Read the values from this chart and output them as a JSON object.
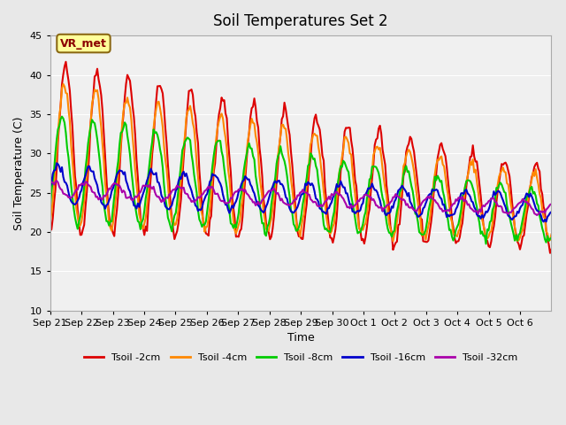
{
  "title": "Soil Temperatures Set 2",
  "xlabel": "Time",
  "ylabel": "Soil Temperature (C)",
  "ylim": [
    10,
    45
  ],
  "yticks": [
    10,
    15,
    20,
    25,
    30,
    35,
    40,
    45
  ],
  "bg_color": "#e8e8e8",
  "plot_bg_color": "#f0f0f0",
  "annotation_text": "VR_met",
  "annotation_bg": "#ffff99",
  "annotation_border": "#8B6914",
  "series_names": [
    "Tsoil -2cm",
    "Tsoil -4cm",
    "Tsoil -8cm",
    "Tsoil -16cm",
    "Tsoil -32cm"
  ],
  "series_colors": [
    "#dd0000",
    "#ff8800",
    "#00cc00",
    "#0000cc",
    "#aa00aa"
  ],
  "series_lw": [
    1.5,
    1.5,
    1.5,
    1.5,
    1.5
  ],
  "xtick_labels": [
    "Sep 21",
    "Sep 22",
    "Sep 23",
    "Sep 24",
    "Sep 25",
    "Sep 26",
    "Sep 27",
    "Sep 28",
    "Sep 29",
    "Sep 30",
    "Oct 1",
    "Oct 2",
    "Oct 3",
    "Oct 4",
    "Oct 5",
    "Oct 6"
  ],
  "num_days": 16
}
